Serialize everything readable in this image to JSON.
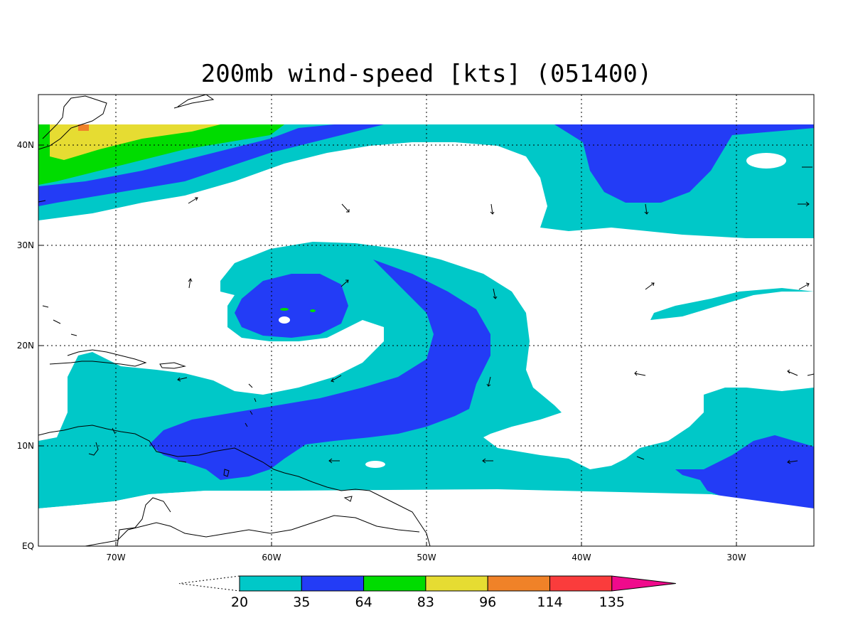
{
  "title": "200mb wind-speed [kts] (051400)",
  "lat_labels": [
    "40N",
    "30N",
    "20N",
    "10N",
    "EQ"
  ],
  "lon_labels": [
    "70W",
    "60W",
    "50W",
    "40W",
    "30W"
  ],
  "colorbar": {
    "labels": [
      "20",
      "35",
      "64",
      "83",
      "96",
      "114",
      "135"
    ],
    "colors": [
      "#00c8c8",
      "#233cf6",
      "#00dc00",
      "#e6dc32",
      "#f08228",
      "#fa3c3c",
      "#f00a8c"
    ]
  },
  "colors": {
    "below_20": "#ffffff",
    "lt_35": "#00c8c8",
    "lt_64": "#233cf6",
    "lt_83": "#00dc00",
    "lt_96": "#e6dc32",
    "lt_114": "#f08228"
  }
}
